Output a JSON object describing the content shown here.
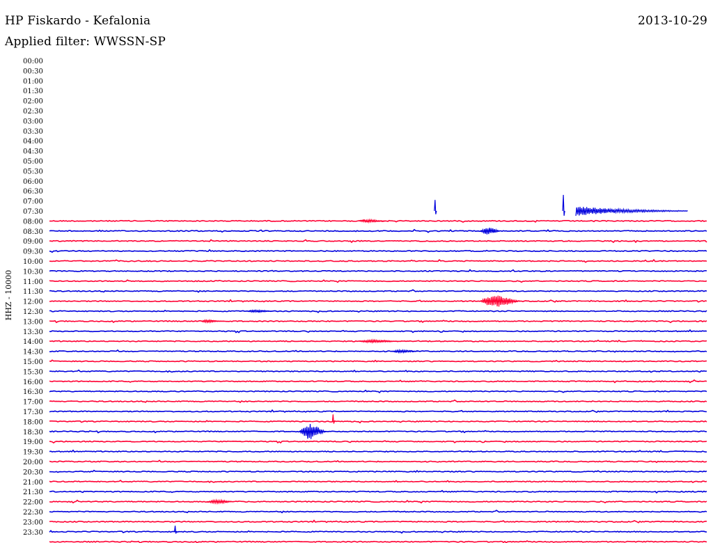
{
  "header": {
    "station": "HP Fiskardo - Kefalonia",
    "date": "2013-10-29",
    "filter": "Applied filter: WWSSN-SP"
  },
  "colors": {
    "odd": "#ff0033",
    "even": "#0000dd"
  },
  "chart_data": {
    "type": "line",
    "ylabel": "HHZ - 10000",
    "y_tick_labels": [
      "00:00",
      "00:30",
      "01:00",
      "01:30",
      "02:00",
      "02:30",
      "03:00",
      "03:30",
      "04:00",
      "04:30",
      "05:00",
      "05:30",
      "06:00",
      "06:30",
      "07:00",
      "07:30",
      "08:00",
      "08:30",
      "09:00",
      "09:30",
      "10:00",
      "10:30",
      "11:00",
      "11:30",
      "12:00",
      "12:30",
      "13:00",
      "13:30",
      "14:00",
      "14:30",
      "15:00",
      "15:30",
      "16:00",
      "16:30",
      "17:00",
      "17:30",
      "18:00",
      "18:30",
      "19:00",
      "19:30",
      "20:00",
      "20:30",
      "21:00",
      "21:30",
      "22:00",
      "22:30",
      "23:00",
      "23:30"
    ],
    "first_trace_row": 15,
    "trace_color_sequence": [
      "red",
      "blue"
    ],
    "events": [
      {
        "row": 14,
        "t": 0.585,
        "amp": 1.1,
        "dur": 0.01,
        "color": "blue",
        "shape": "spike"
      },
      {
        "row": 14,
        "t": 0.78,
        "amp": 1.6,
        "dur": 0.01,
        "color": "blue",
        "shape": "spike"
      },
      {
        "row": 14,
        "t": 0.8,
        "amp": 0.5,
        "dur": 0.17,
        "color": "blue",
        "shape": "coda"
      },
      {
        "row": 15,
        "t": 0.47,
        "amp": 0.25,
        "dur": 0.04,
        "color": "red",
        "shape": "burst"
      },
      {
        "row": 16,
        "t": 0.655,
        "amp": 0.6,
        "dur": 0.03,
        "color": "blue",
        "shape": "burst"
      },
      {
        "row": 23,
        "t": 0.655,
        "amp": 1.0,
        "dur": 0.06,
        "color": "red",
        "shape": "burst"
      },
      {
        "row": 24,
        "t": 0.3,
        "amp": 0.2,
        "dur": 0.04,
        "color": "blue",
        "shape": "burst"
      },
      {
        "row": 25,
        "t": 0.23,
        "amp": 0.25,
        "dur": 0.03,
        "color": "red",
        "shape": "burst"
      },
      {
        "row": 27,
        "t": 0.47,
        "amp": 0.25,
        "dur": 0.06,
        "color": "red",
        "shape": "burst"
      },
      {
        "row": 28,
        "t": 0.52,
        "amp": 0.25,
        "dur": 0.04,
        "color": "blue",
        "shape": "burst"
      },
      {
        "row": 35,
        "t": 0.43,
        "amp": 0.7,
        "dur": 0.01,
        "color": "red",
        "shape": "spike"
      },
      {
        "row": 36,
        "t": 0.38,
        "amp": 1.3,
        "dur": 0.04,
        "color": "blue",
        "shape": "burst"
      },
      {
        "row": 43,
        "t": 0.24,
        "amp": 0.3,
        "dur": 0.04,
        "color": "red",
        "shape": "burst"
      },
      {
        "row": 46,
        "t": 0.19,
        "amp": 0.6,
        "dur": 0.01,
        "color": "blue",
        "shape": "spike"
      }
    ]
  }
}
